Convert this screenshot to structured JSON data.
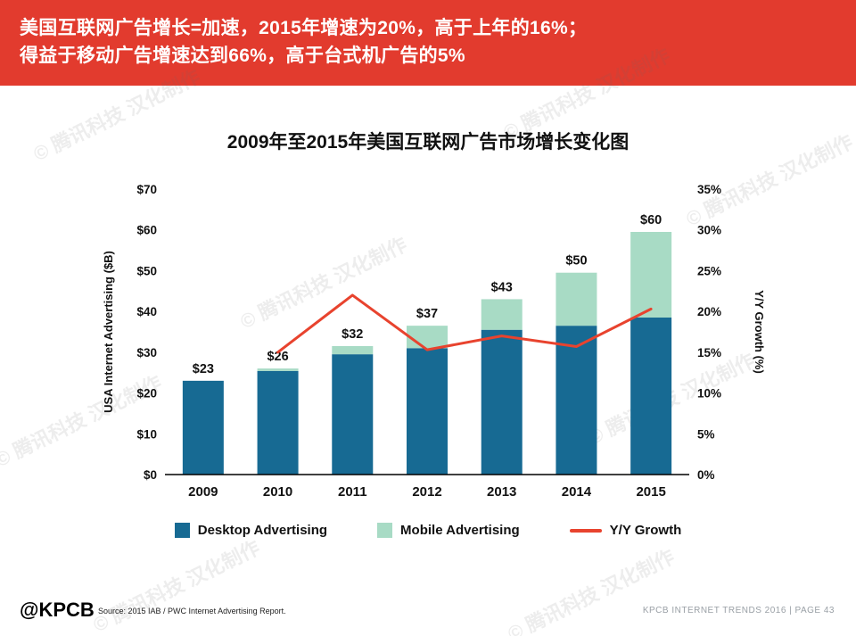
{
  "header": {
    "line1": "美国互联网广告增长=加速，2015年增速为20%，高于上年的16%；",
    "line2": "得益于移动广告增速达到66%，高于台式机广告的5%"
  },
  "chart_data": {
    "type": "bar",
    "title": "2009年至2015年美国互联网广告市场增长变化图",
    "categories": [
      "2009",
      "2010",
      "2011",
      "2012",
      "2013",
      "2014",
      "2015"
    ],
    "series": [
      {
        "name": "Desktop Advertising",
        "type": "bar",
        "stack": true,
        "color": "#176A93",
        "values": [
          23,
          25.4,
          29.5,
          31,
          35.5,
          36.5,
          38.5
        ]
      },
      {
        "name": "Mobile Advertising",
        "type": "bar",
        "stack": true,
        "color": "#A8DBC5",
        "values": [
          0,
          0.6,
          2,
          5.5,
          7.5,
          13,
          21
        ]
      },
      {
        "name": "Y/Y Growth",
        "type": "line",
        "axis": "right",
        "color": "#E8432E",
        "values": [
          null,
          15,
          22,
          15.3,
          17,
          15.7,
          20.3
        ]
      }
    ],
    "bar_total_labels": [
      "$23",
      "$26",
      "$32",
      "$37",
      "$43",
      "$50",
      "$60"
    ],
    "left_axis": {
      "title": "USA Internet Advertising ($B)",
      "min": 0,
      "max": 70,
      "step": 10,
      "ticks": [
        "$0",
        "$10",
        "$20",
        "$30",
        "$40",
        "$50",
        "$60",
        "$70"
      ]
    },
    "right_axis": {
      "title": "Y/Y Growth (%)",
      "min": 0,
      "max": 35,
      "step": 5,
      "ticks": [
        "0%",
        "5%",
        "10%",
        "15%",
        "20%",
        "25%",
        "30%",
        "35%"
      ]
    },
    "grid": false,
    "legend_position": "bottom"
  },
  "legend": [
    {
      "label": "Desktop Advertising",
      "swatch": "square"
    },
    {
      "label": "Mobile Advertising",
      "swatch": "square"
    },
    {
      "label": "Y/Y Growth",
      "swatch": "line"
    }
  ],
  "footer": {
    "logo": "@KPCB",
    "source": "Source: 2015 IAB / PWC Internet Advertising Report.",
    "page_info": "KPCB INTERNET TRENDS 2016   |   PAGE 43"
  },
  "watermark": {
    "text": "© 腾讯科技 汉化制作"
  },
  "colors": {
    "header_red": "#E23B2E",
    "desktop_blue": "#176A93",
    "mobile_green": "#A8DBC5",
    "growth_red": "#E8432E",
    "footer_gray": "#9AA0A6"
  }
}
